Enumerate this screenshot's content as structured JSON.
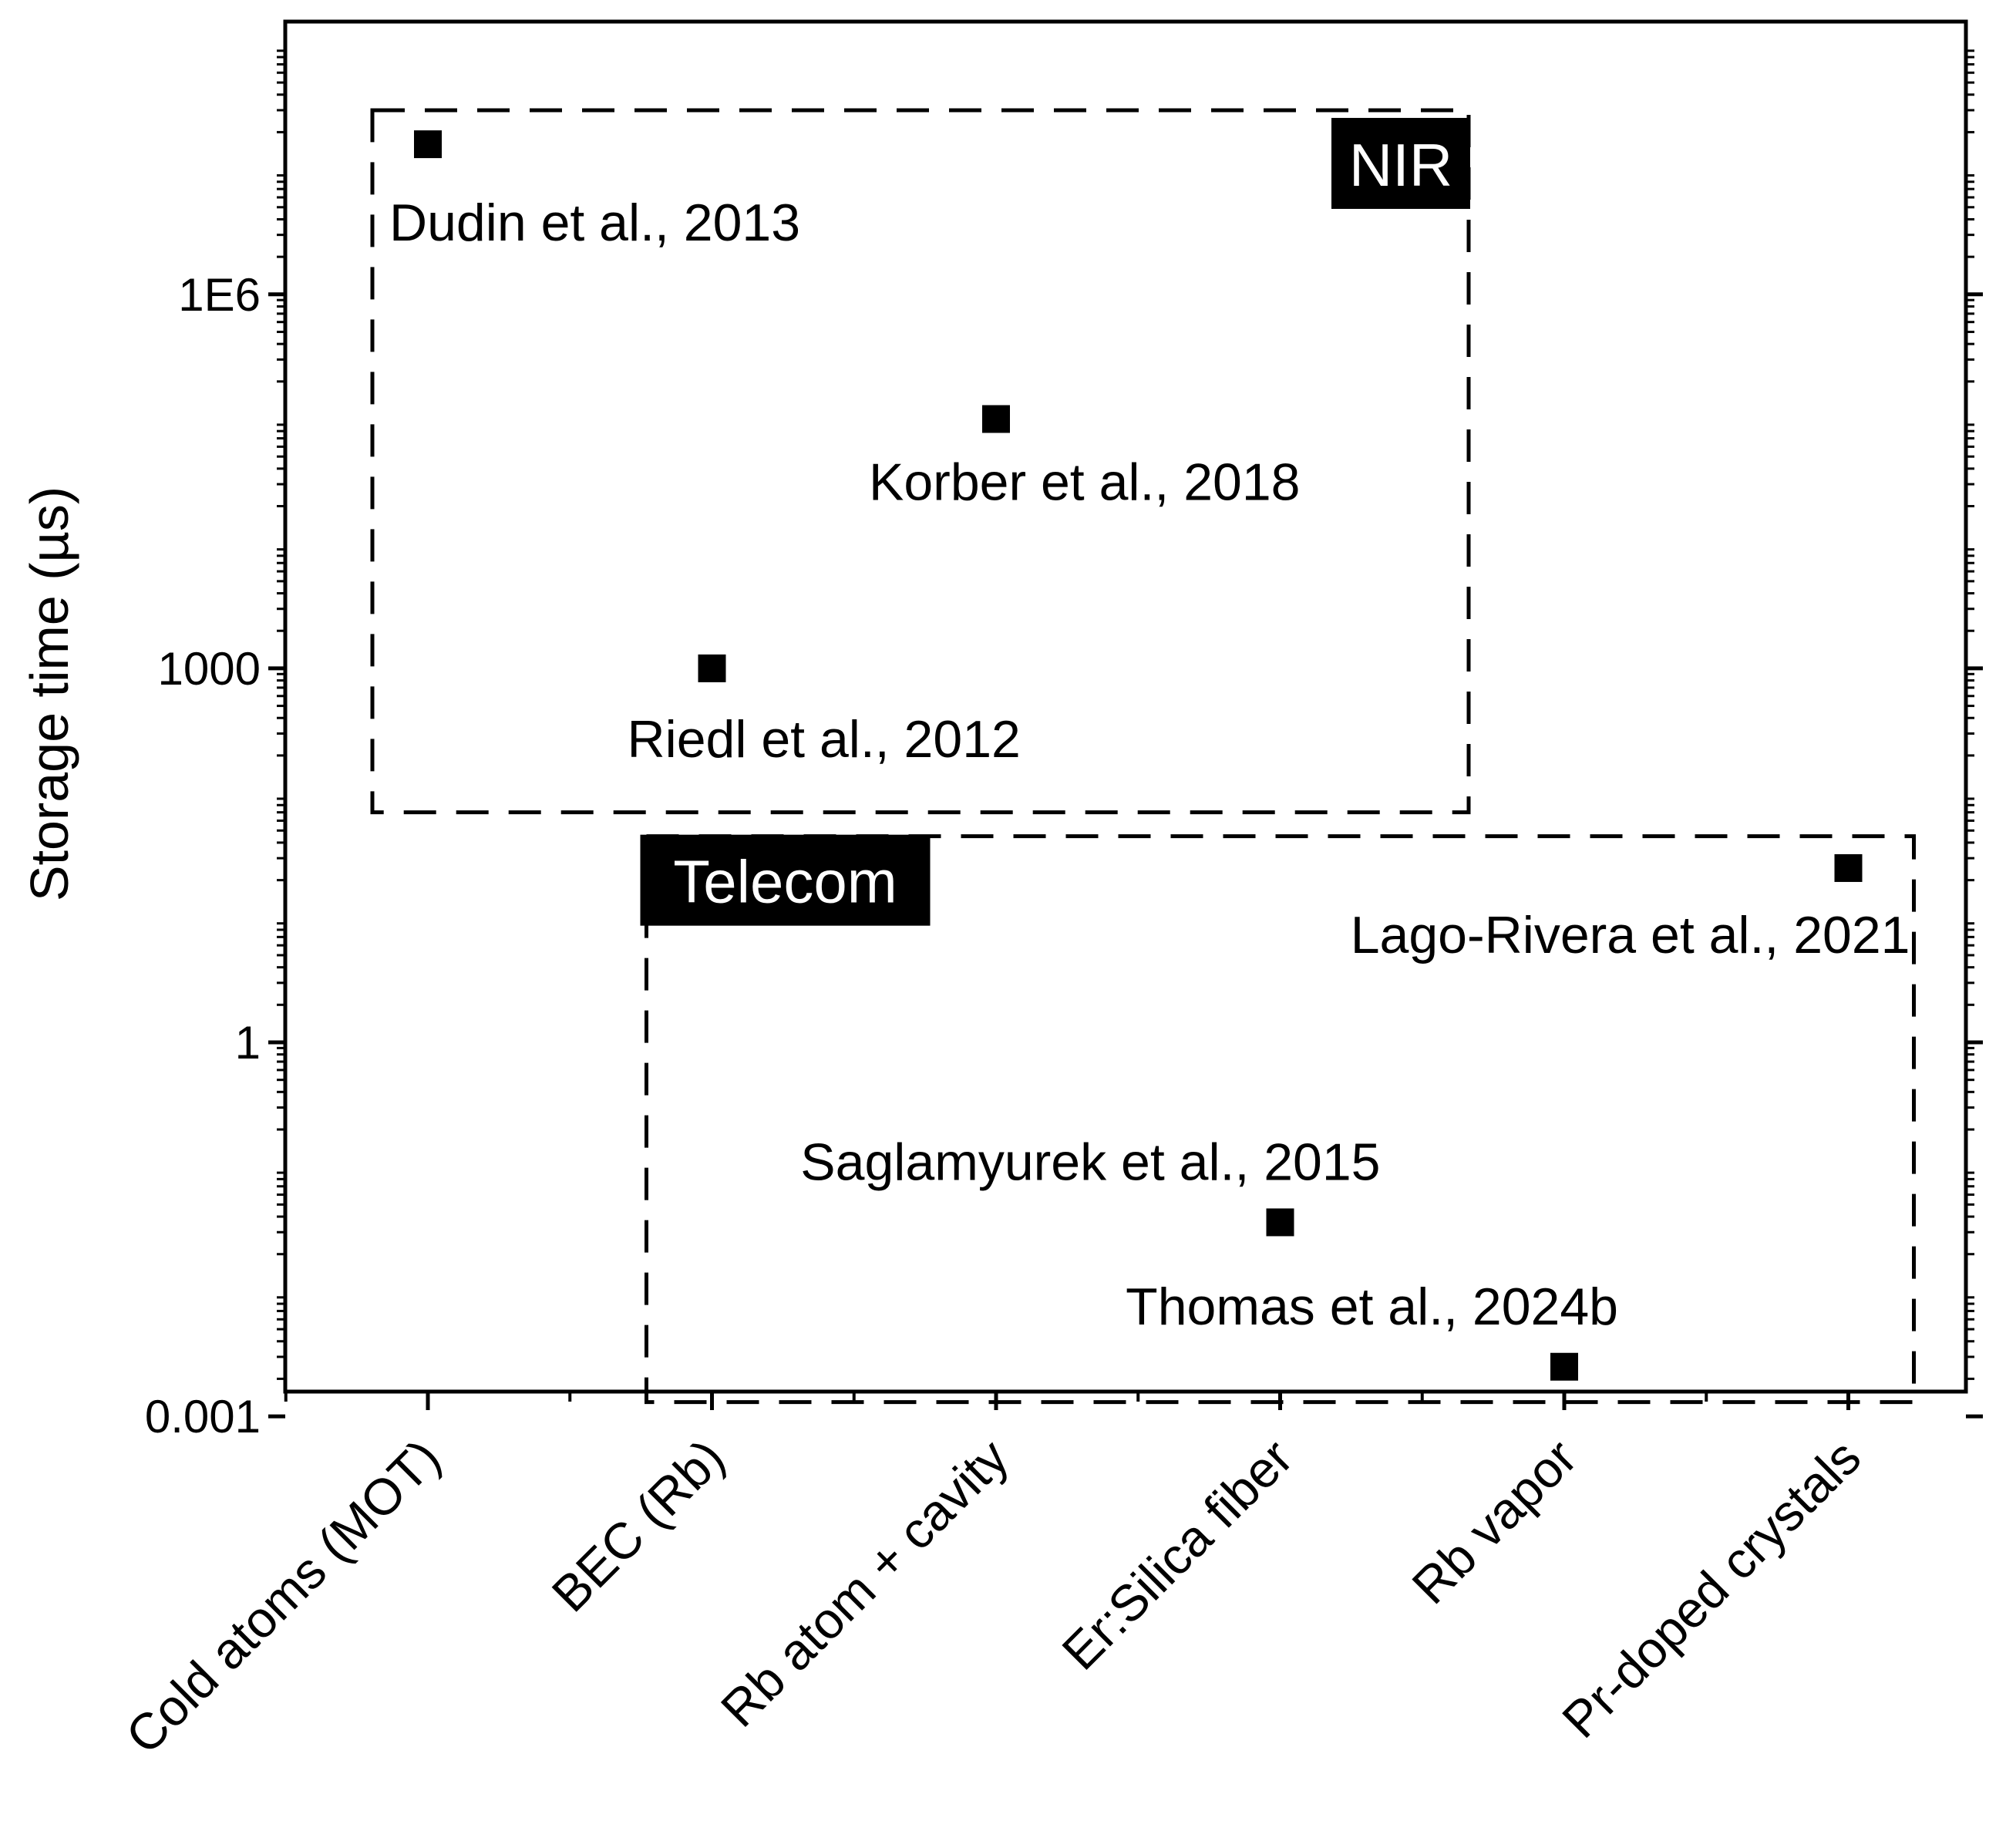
{
  "chart_data": {
    "type": "scatter",
    "title": "",
    "xlabel": "",
    "ylabel": "Storage time (µs)",
    "y_scale": "log",
    "ylim": [
      0.001,
      100000000
    ],
    "yticks": [
      {
        "value": 0.001,
        "label": "0.001"
      },
      {
        "value": 1,
        "label": "1"
      },
      {
        "value": 1000,
        "label": "1000"
      },
      {
        "value": 1000000,
        "label": "1E6"
      }
    ],
    "categories": [
      "Cold atoms (MOT)",
      "BEC (Rb)",
      "Rb atom + cavity",
      "Er:Silica fiber",
      "Rb vapor",
      "Pr-doped crystals"
    ],
    "series": [
      {
        "points": [
          {
            "category": "Cold atoms (MOT)",
            "y": 16000000,
            "label": "Dudin et al., 2013"
          },
          {
            "category": "BEC (Rb)",
            "y": 1000,
            "label": "Riedl et al., 2012"
          },
          {
            "category": "Rb atom + cavity",
            "y": 100000,
            "label": "Korber et al., 2018"
          },
          {
            "category": "Er:Silica fiber",
            "y": 0.036,
            "label": "Saglamyurek et al., 2015"
          },
          {
            "category": "Rb vapor",
            "y": 0.0025,
            "label": "Thomas et al., 2024b"
          },
          {
            "category": "Pr-doped crystals",
            "y": 25,
            "label": "Lago-Rivera et al., 2021"
          }
        ]
      }
    ],
    "regions": [
      {
        "label": "NIR",
        "x_range": [
          "Cold atoms (MOT)",
          "Rb atom + cavity"
        ],
        "y_range": [
          70,
          30000000
        ]
      },
      {
        "label": "Telecom",
        "x_range": [
          "BEC (Rb)",
          "Pr-doped crystals"
        ],
        "y_range": [
          0.0013,
          45
        ]
      }
    ],
    "grid": false,
    "legend": "none"
  }
}
